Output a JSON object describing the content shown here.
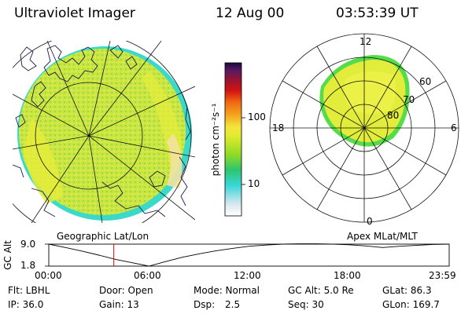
{
  "header": {
    "instrument": "Ultraviolet Imager",
    "date": "12 Aug 00",
    "time": "03:53:39 UT"
  },
  "colorbar": {
    "unit_label": "photon cm⁻²s⁻¹",
    "ticks": [
      "100",
      "10"
    ],
    "colors": [
      "#ffffff",
      "#d6e6ef",
      "#37d7d7",
      "#2fc46e",
      "#8fdb25",
      "#e0ea2f",
      "#f3e63c",
      "#f5a31e",
      "#f06a12",
      "#d21212",
      "#8a1538",
      "#581a62",
      "#1c0a3e"
    ]
  },
  "left_panel": {
    "caption": "Geographic Lat/Lon",
    "colors": {
      "fill": "#c6e449",
      "rim": "#3ad9c9",
      "coast": "#1a1a4a"
    }
  },
  "right_panel": {
    "caption": "Apex MLat/MLT",
    "mlt_labels": {
      "top": "12",
      "left": "18",
      "right": "6",
      "bottom": "0"
    },
    "lat_labels": [
      "80",
      "70",
      "60"
    ],
    "colors": {
      "fill": "#e2ec3b",
      "rim": "#56dc4a"
    }
  },
  "altitude_plot": {
    "ylabel": "GC Alt",
    "yticks": [
      "9.0",
      "1.8"
    ],
    "xticks": [
      "00:00",
      "06:00",
      "12:00",
      "18:00",
      "23:59"
    ],
    "marker_color": "#d01010"
  },
  "chart_data": {
    "type": "line",
    "title": "",
    "xlabel": "",
    "ylabel": "GC Alt",
    "ylim": [
      1.8,
      9.0
    ],
    "x": [
      "00:00",
      "01:00",
      "02:00",
      "03:00",
      "04:00",
      "05:00",
      "06:00",
      "07:00",
      "08:00",
      "09:00",
      "10:00",
      "11:00",
      "12:00",
      "13:00",
      "14:00",
      "15:00",
      "16:00",
      "17:00",
      "18:00",
      "19:00",
      "20:00",
      "21:00",
      "22:00",
      "23:00",
      "23:59"
    ],
    "series": [
      {
        "values": [
          9.0,
          7.9,
          6.7,
          5.4,
          4.0,
          2.9,
          1.8,
          3.3,
          4.7,
          5.8,
          6.8,
          7.6,
          8.3,
          8.7,
          9.0,
          9.1,
          9.1,
          9.0,
          8.8,
          8.4,
          7.9,
          8.3,
          8.6,
          8.9,
          9.0
        ]
      }
    ],
    "marker_time": "03:53:39"
  },
  "status": {
    "flt": "Flt: LBHL",
    "door": "Door: Open",
    "mode": "Mode: Normal",
    "gcalt": "GC Alt: 5.0 Re",
    "glat": "GLat: 86.3",
    "ip": "IP: 36.0",
    "gain": "Gain: 13",
    "dsp_label": "Dsp:",
    "dsp_value": "2.5",
    "seq": "Seq: 30",
    "glon": "GLon: 169.7"
  }
}
